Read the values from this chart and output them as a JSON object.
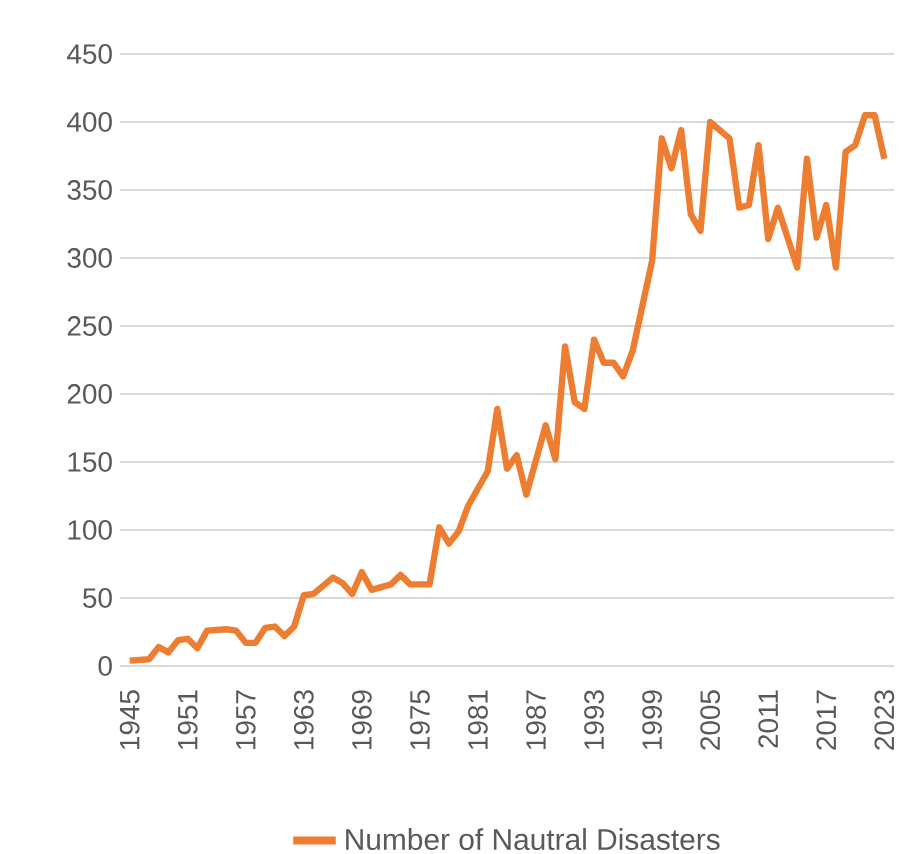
{
  "chart_data": {
    "type": "line",
    "legend": "bottom",
    "grid": "y",
    "line_style": "solid",
    "xlim": [
      1944,
      2024
    ],
    "xticks": [
      1945,
      1951,
      1957,
      1963,
      1969,
      1975,
      1981,
      1987,
      1993,
      1999,
      2005,
      2011,
      2017,
      2023
    ],
    "ylim": [
      0,
      450
    ],
    "yticks": [
      0,
      50,
      100,
      150,
      200,
      250,
      300,
      350,
      400,
      450
    ],
    "x": [
      1945,
      1947,
      1948,
      1949,
      1950,
      1951,
      1952,
      1953,
      1955,
      1956,
      1957,
      1958,
      1959,
      1960,
      1961,
      1962,
      1963,
      1964,
      1966,
      1967,
      1968,
      1969,
      1970,
      1972,
      1973,
      1974,
      1976,
      1977,
      1978,
      1979,
      1980,
      1982,
      1983,
      1984,
      1985,
      1986,
      1988,
      1989,
      1990,
      1991,
      1992,
      1993,
      1994,
      1995,
      1996,
      1997,
      1999,
      2000,
      2001,
      2002,
      2003,
      2004,
      2005,
      2007,
      2008,
      2009,
      2010,
      2011,
      2012,
      2014,
      2015,
      2016,
      2017,
      2018,
      2019,
      2020,
      2021,
      2022,
      2023
    ],
    "series": [
      {
        "name": "Number of Nautral Disasters",
        "color": "#ed7d31",
        "values": [
          4,
          5,
          14,
          10,
          19,
          20,
          13,
          26,
          27,
          26,
          17,
          17,
          28,
          29,
          22,
          29,
          52,
          53,
          65,
          61,
          53,
          69,
          56,
          60,
          67,
          60,
          60,
          102,
          90,
          99,
          118,
          143,
          189,
          145,
          155,
          126,
          177,
          152,
          235,
          194,
          189,
          240,
          223,
          223,
          213,
          232,
          298,
          388,
          366,
          394,
          332,
          320,
          400,
          388,
          337,
          339,
          383,
          314,
          337,
          293,
          373,
          315,
          339,
          293,
          378,
          383,
          405,
          405,
          373
        ]
      }
    ]
  }
}
